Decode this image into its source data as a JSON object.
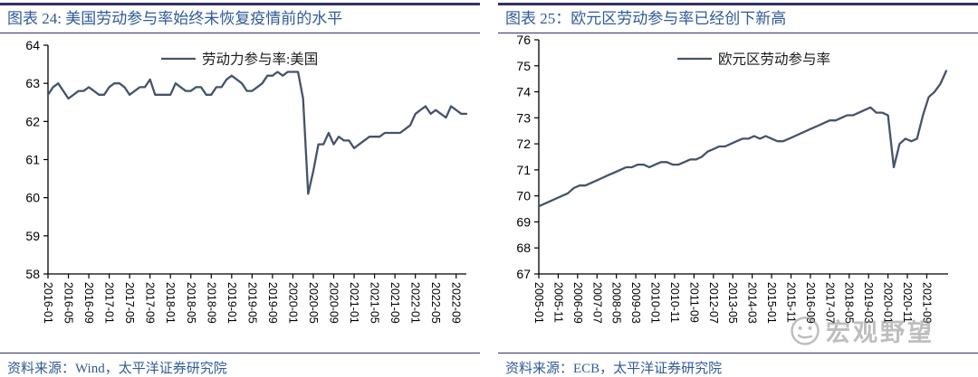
{
  "page": {
    "accent_rule_color": "#31316b",
    "title_color": "#2f5b97",
    "series_line_color": "#44546A",
    "axis_color": "#000000",
    "watermark_color": "#8a8a8a"
  },
  "panels": [
    {
      "title": "图表 24: 美国劳动参与率始终未恢复疫情前的水平",
      "source": "资料来源：Wind，太平洋证券研究院"
    },
    {
      "title": "图表 25：欧元区劳动参与率已经创下新高",
      "source": "资料来源：ECB，太平洋证券研究院"
    }
  ],
  "watermark": {
    "text": "宏观野望",
    "icon": "smiley-face-icon"
  },
  "chart_data": [
    {
      "type": "line",
      "title": "图表 24: 美国劳动参与率始终未恢复疫情前的水平",
      "legend": "劳动力参与率:美国",
      "ylim": [
        58,
        64
      ],
      "y_ticks": [
        58,
        59,
        60,
        61,
        62,
        63,
        64
      ],
      "x_range": [
        "2016-01",
        "2022-11"
      ],
      "freq": "monthly",
      "span_months": 82,
      "value_month_step": 1,
      "x_tick_interval_months": 4,
      "x_tick_labels": [
        "2016-01",
        "2016-05",
        "2016-09",
        "2017-01",
        "2017-05",
        "2017-09",
        "2018-01",
        "2018-05",
        "2018-09",
        "2019-01",
        "2019-05",
        "2019-09",
        "2020-01",
        "2020-05",
        "2020-09",
        "2021-01",
        "2021-05",
        "2021-09",
        "2022-01",
        "2022-05",
        "2022-09"
      ],
      "grid": false,
      "legend_position": "top-center",
      "line_color": "#44546A",
      "values": [
        62.7,
        62.9,
        63.0,
        62.8,
        62.6,
        62.7,
        62.8,
        62.8,
        62.9,
        62.8,
        62.7,
        62.7,
        62.9,
        63.0,
        63.0,
        62.9,
        62.7,
        62.8,
        62.9,
        62.9,
        63.1,
        62.7,
        62.7,
        62.7,
        62.7,
        63.0,
        62.9,
        62.8,
        62.8,
        62.9,
        62.9,
        62.7,
        62.7,
        62.9,
        62.9,
        63.1,
        63.2,
        63.1,
        63.0,
        62.8,
        62.8,
        62.9,
        63.0,
        63.2,
        63.2,
        63.3,
        63.2,
        63.3,
        63.3,
        63.3,
        62.6,
        60.1,
        60.7,
        61.4,
        61.4,
        61.7,
        61.4,
        61.6,
        61.5,
        61.5,
        61.3,
        61.4,
        61.5,
        61.6,
        61.6,
        61.6,
        61.7,
        61.7,
        61.7,
        61.7,
        61.8,
        61.9,
        62.2,
        62.3,
        62.4,
        62.2,
        62.3,
        62.2,
        62.1,
        62.4,
        62.3,
        62.2,
        62.2
      ]
    },
    {
      "type": "line",
      "title": "图表 25：欧元区劳动参与率已经创下新高",
      "legend": "欧元区劳动参与率",
      "ylim": [
        67,
        76
      ],
      "y_ticks": [
        67,
        68,
        69,
        70,
        71,
        72,
        73,
        74,
        75,
        76
      ],
      "x_range": [
        "2005-01",
        "2022-07"
      ],
      "freq": "quarterly (read from chart)",
      "span_months": 211,
      "value_month_step": 3,
      "x_tick_interval_months": 10,
      "x_tick_labels": [
        "2005-01",
        "2005-11",
        "2006-09",
        "2007-07",
        "2008-05",
        "2009-03",
        "2010-01",
        "2010-11",
        "2011-09",
        "2012-07",
        "2013-05",
        "2014-03",
        "2015-01",
        "2015-11",
        "2016-09",
        "2017-07",
        "2018-05",
        "2019-03",
        "2020-01",
        "2020-11",
        "2021-09"
      ],
      "grid": false,
      "legend_position": "top-center",
      "line_color": "#44546A",
      "values": [
        69.6,
        69.7,
        69.8,
        69.9,
        70.0,
        70.1,
        70.3,
        70.4,
        70.4,
        70.5,
        70.6,
        70.7,
        70.8,
        70.9,
        71.0,
        71.1,
        71.1,
        71.2,
        71.2,
        71.1,
        71.2,
        71.3,
        71.3,
        71.2,
        71.2,
        71.3,
        71.4,
        71.4,
        71.5,
        71.7,
        71.8,
        71.9,
        71.9,
        72.0,
        72.1,
        72.2,
        72.2,
        72.3,
        72.2,
        72.3,
        72.2,
        72.1,
        72.1,
        72.2,
        72.3,
        72.4,
        72.5,
        72.6,
        72.7,
        72.8,
        72.9,
        72.9,
        73.0,
        73.1,
        73.1,
        73.2,
        73.3,
        73.4,
        73.2,
        73.2,
        73.1,
        71.1,
        72.0,
        72.2,
        72.1,
        72.2,
        73.1,
        73.8,
        74.0,
        74.3,
        74.8
      ]
    }
  ]
}
